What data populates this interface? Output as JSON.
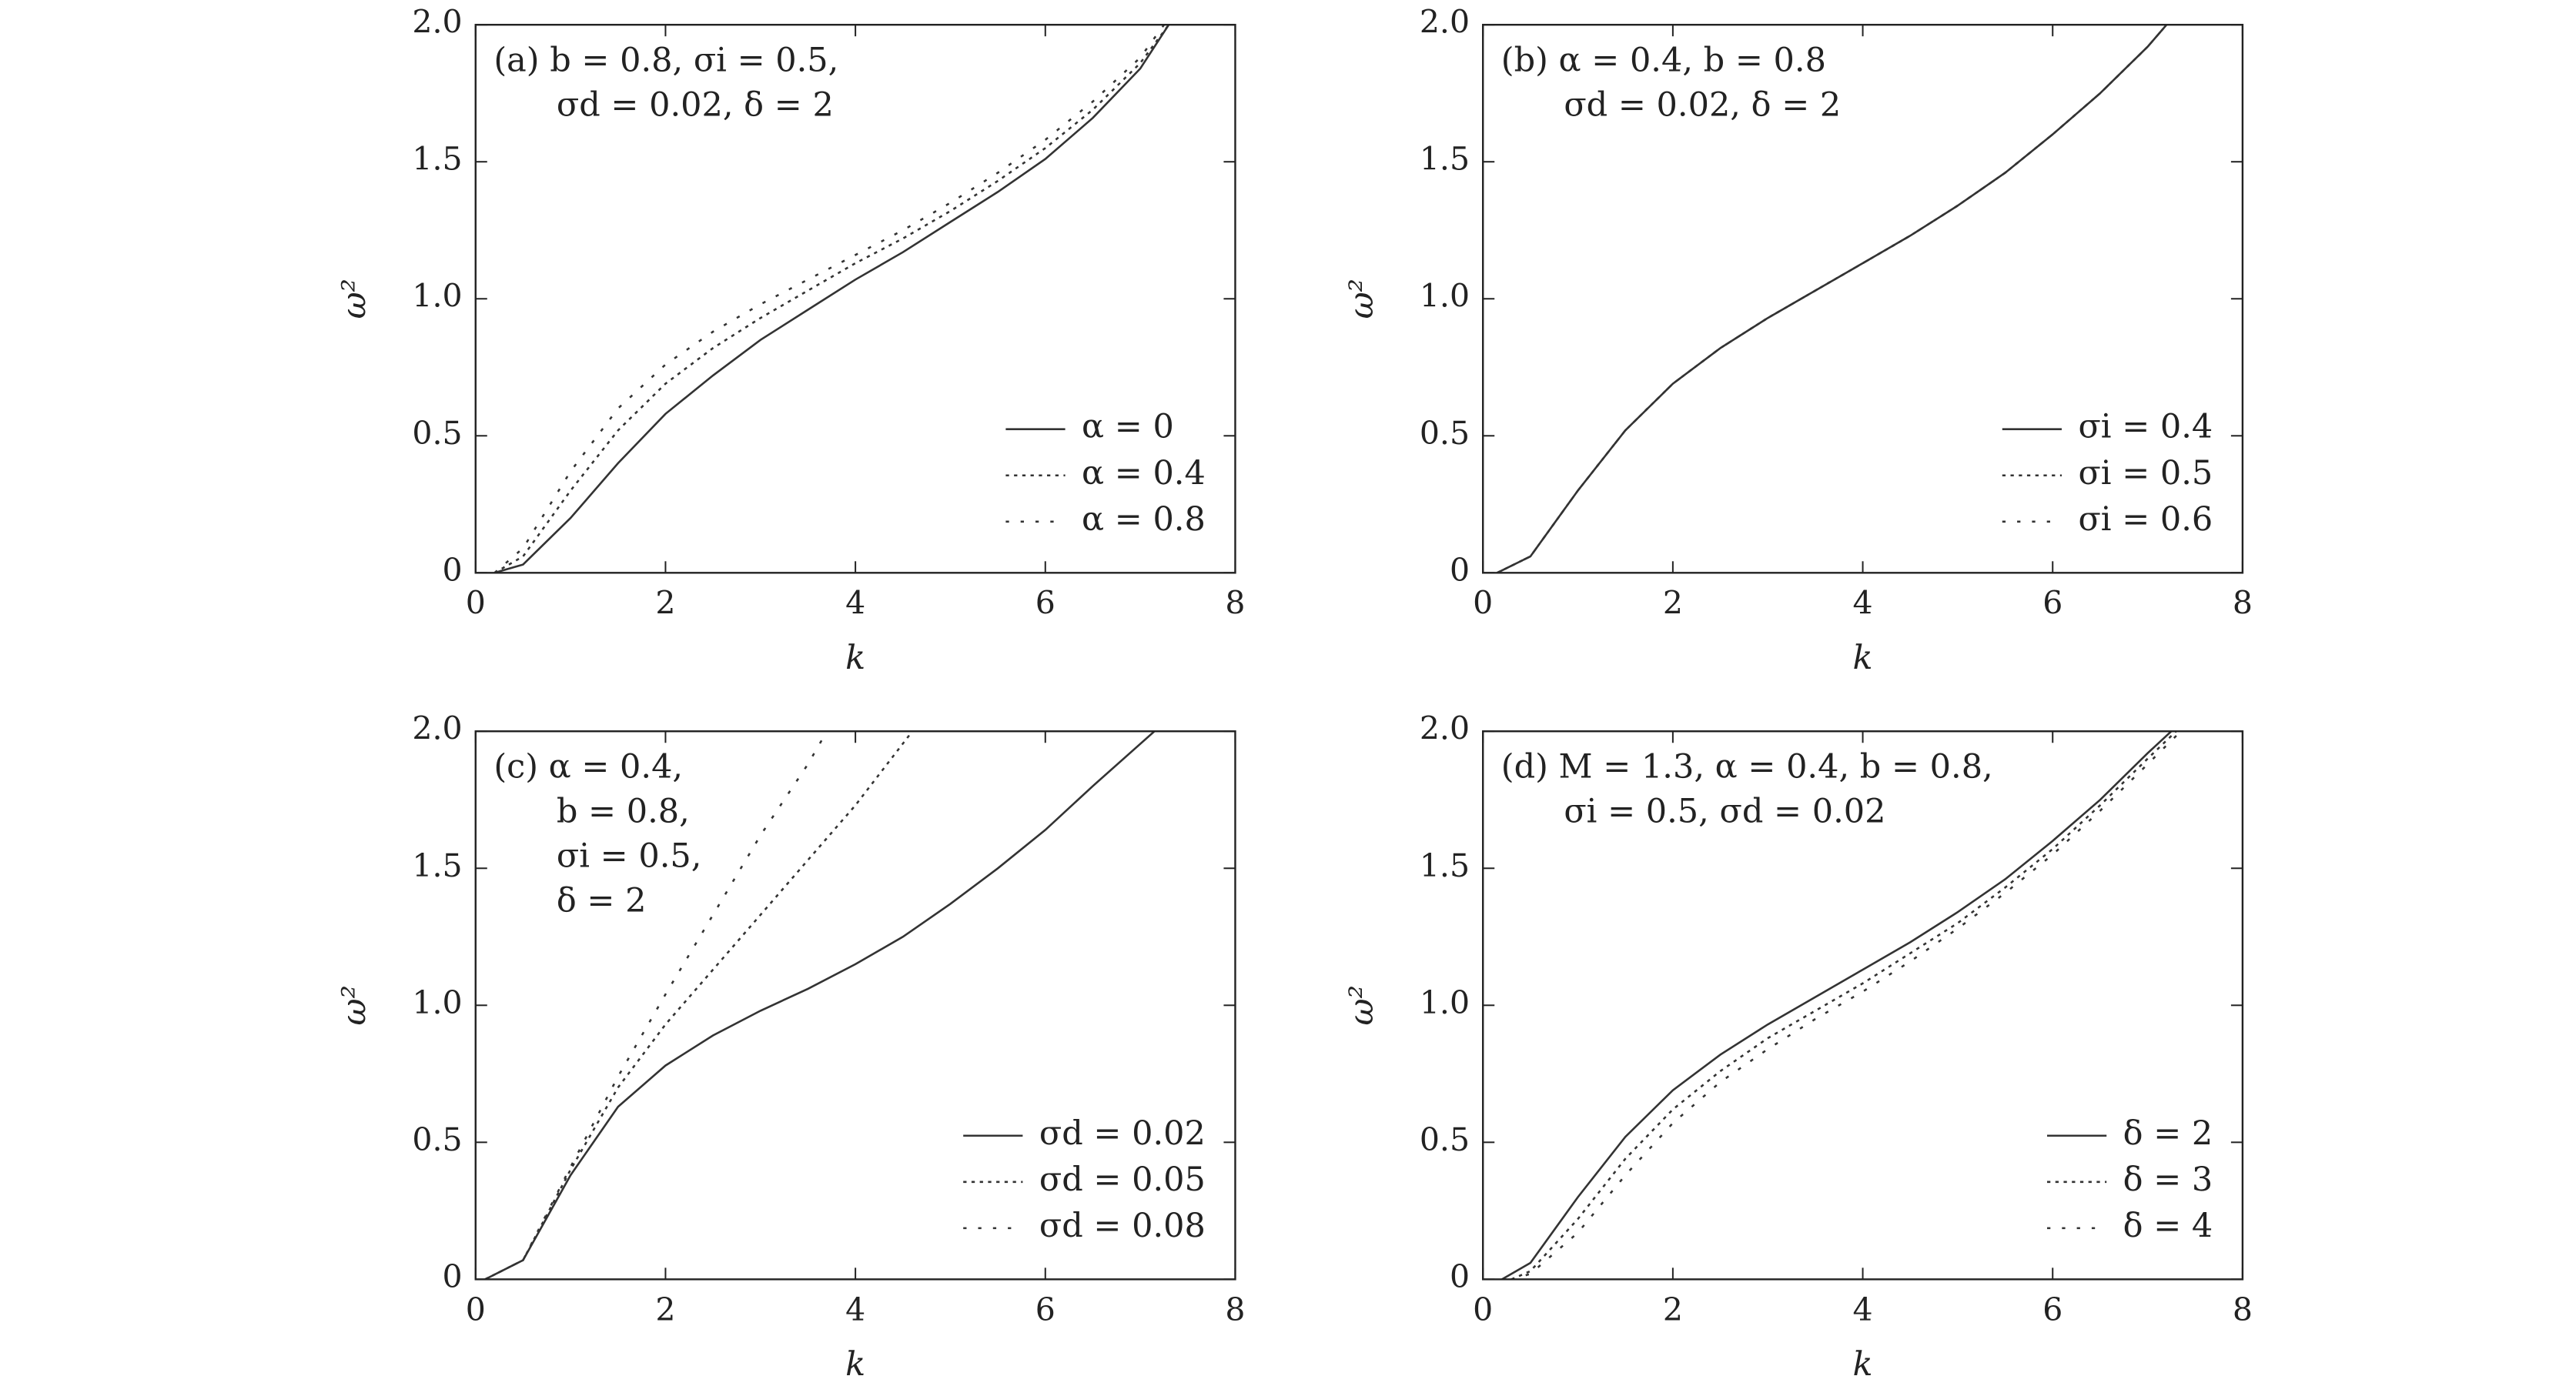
{
  "chart_data": [
    {
      "type": "line",
      "annotation": [
        "(a) b = 0.8, σi = 0.5,",
        "σd = 0.02, δ = 2"
      ],
      "x_label": "k",
      "y_label": "ω²",
      "xlim": [
        0,
        8
      ],
      "ylim": [
        0,
        2
      ],
      "xticks": [
        0,
        2,
        4,
        6,
        8
      ],
      "yticks": [
        0,
        0.5,
        {
          "value": 1,
          "label": "1.0"
        },
        1.5,
        {
          "value": 2,
          "label": "2.0"
        }
      ],
      "legend": "lower right",
      "series": [
        {
          "name": "α = 0",
          "color": "#333333",
          "dash": "solid",
          "x": [
            0.2,
            0.5,
            1,
            1.5,
            2,
            2.5,
            3,
            3.5,
            4,
            4.5,
            5,
            5.5,
            6,
            6.5,
            7,
            7.3
          ],
          "values": [
            0,
            0.03,
            0.2,
            0.4,
            0.58,
            0.72,
            0.85,
            0.96,
            1.07,
            1.17,
            1.28,
            1.39,
            1.51,
            1.66,
            1.84,
            2.0
          ]
        },
        {
          "name": "α = 0.4",
          "color": "#333333",
          "dash": "dotted",
          "x": [
            0.2,
            0.5,
            1,
            1.5,
            2,
            2.5,
            3,
            3.5,
            4,
            4.5,
            5,
            5.5,
            6,
            6.5,
            7,
            7.3
          ],
          "values": [
            0,
            0.06,
            0.3,
            0.52,
            0.69,
            0.82,
            0.93,
            1.03,
            1.13,
            1.22,
            1.32,
            1.43,
            1.55,
            1.69,
            1.86,
            2.0
          ]
        },
        {
          "name": "α = 0.8",
          "color": "#333333",
          "dash": "sparse",
          "x": [
            0.2,
            0.5,
            1,
            1.5,
            2,
            2.5,
            3,
            3.5,
            4,
            4.5,
            5,
            5.5,
            6,
            6.5,
            7,
            7.25
          ],
          "values": [
            0,
            0.09,
            0.37,
            0.6,
            0.76,
            0.88,
            0.98,
            1.07,
            1.16,
            1.25,
            1.35,
            1.46,
            1.58,
            1.72,
            1.88,
            2.0
          ]
        }
      ]
    },
    {
      "type": "line",
      "annotation": [
        "(b) α = 0.4, b = 0.8",
        "σd = 0.02, δ = 2"
      ],
      "x_label": "k",
      "y_label": "ω²",
      "xlim": [
        0,
        8
      ],
      "ylim": [
        0,
        2
      ],
      "xticks": [
        0,
        2,
        4,
        6,
        8
      ],
      "yticks": [
        0,
        0.5,
        {
          "value": 1,
          "label": "1.0"
        },
        1.5,
        {
          "value": 2,
          "label": "2.0"
        }
      ],
      "legend": "lower right",
      "series": [
        {
          "name": "σi = 0.4",
          "color": "#333333",
          "dash": "solid",
          "x": [
            0.15,
            0.5,
            1,
            1.5,
            2,
            2.5,
            3,
            3.5,
            4,
            4.5,
            5,
            5.5,
            6,
            6.5,
            7,
            7.2
          ],
          "values": [
            0,
            0.06,
            0.3,
            0.52,
            0.69,
            0.82,
            0.93,
            1.03,
            1.13,
            1.23,
            1.34,
            1.46,
            1.6,
            1.75,
            1.92,
            2.0
          ]
        },
        {
          "name": "σi = 0.5",
          "color": "#333333",
          "dash": "dotted",
          "x": [
            0.15,
            0.5,
            1,
            1.5,
            2,
            2.5,
            3,
            3.5,
            4,
            4.5,
            5,
            5.5,
            6,
            6.5,
            7,
            7.2
          ],
          "values": [
            0,
            0.06,
            0.3,
            0.52,
            0.69,
            0.82,
            0.93,
            1.03,
            1.13,
            1.23,
            1.34,
            1.46,
            1.6,
            1.75,
            1.92,
            2.0
          ]
        },
        {
          "name": "σi = 0.6",
          "color": "#333333",
          "dash": "sparse",
          "x": [
            0.15,
            0.5,
            1,
            1.5,
            2,
            2.5,
            3,
            3.5,
            4,
            4.5,
            5,
            5.5,
            6,
            6.5,
            7,
            7.2
          ],
          "values": [
            0,
            0.06,
            0.3,
            0.52,
            0.69,
            0.82,
            0.93,
            1.03,
            1.13,
            1.23,
            1.34,
            1.46,
            1.6,
            1.75,
            1.92,
            2.0
          ]
        }
      ]
    },
    {
      "type": "line",
      "annotation": [
        "(c) α = 0.4,",
        "b = 0.8,",
        "σi = 0.5,",
        "δ = 2"
      ],
      "x_label": "k",
      "y_label": "ω²",
      "xlim": [
        0,
        8
      ],
      "ylim": [
        0,
        2
      ],
      "xticks": [
        0,
        2,
        4,
        6,
        8
      ],
      "yticks": [
        0,
        0.5,
        {
          "value": 1,
          "label": "1.0"
        },
        1.5,
        {
          "value": 2,
          "label": "2.0"
        }
      ],
      "legend": "lower right",
      "series": [
        {
          "name": "σd = 0.02",
          "color": "#333333",
          "dash": "solid",
          "x": [
            0.1,
            0.5,
            1,
            1.5,
            2,
            2.5,
            3,
            3.5,
            4,
            4.5,
            5,
            5.5,
            6,
            6.5,
            7.15
          ],
          "values": [
            0,
            0.07,
            0.38,
            0.63,
            0.78,
            0.89,
            0.98,
            1.06,
            1.15,
            1.25,
            1.37,
            1.5,
            1.64,
            1.8,
            2.0
          ]
        },
        {
          "name": "σd = 0.05",
          "color": "#333333",
          "dash": "dotted",
          "x": [
            0.1,
            0.5,
            1,
            1.5,
            2,
            2.5,
            3,
            3.5,
            4,
            4.6
          ],
          "values": [
            0,
            0.07,
            0.4,
            0.7,
            0.93,
            1.13,
            1.33,
            1.53,
            1.73,
            2.0
          ]
        },
        {
          "name": "σd = 0.08",
          "color": "#333333",
          "dash": "sparse",
          "x": [
            0.1,
            0.5,
            1,
            1.5,
            2,
            2.5,
            3,
            3.5,
            3.7
          ],
          "values": [
            0,
            0.07,
            0.41,
            0.74,
            1.04,
            1.33,
            1.62,
            1.88,
            2.0
          ]
        }
      ]
    },
    {
      "type": "line",
      "annotation": [
        "(d) M = 1.3, α = 0.4, b = 0.8,",
        "σi = 0.5, σd = 0.02"
      ],
      "x_label": "k",
      "y_label": "ω²",
      "xlim": [
        0,
        8
      ],
      "ylim": [
        0,
        2
      ],
      "xticks": [
        0,
        2,
        4,
        6,
        8
      ],
      "yticks": [
        0,
        0.5,
        {
          "value": 1,
          "label": "1.0"
        },
        1.5,
        {
          "value": 2,
          "label": "2.0"
        }
      ],
      "legend": "lower right",
      "series": [
        {
          "name": "δ = 2",
          "color": "#333333",
          "dash": "solid",
          "x": [
            0.2,
            0.5,
            1,
            1.5,
            2,
            2.5,
            3,
            3.5,
            4,
            4.5,
            5,
            5.5,
            6,
            6.5,
            7,
            7.25
          ],
          "values": [
            0,
            0.06,
            0.3,
            0.52,
            0.69,
            0.82,
            0.93,
            1.03,
            1.13,
            1.23,
            1.34,
            1.46,
            1.6,
            1.75,
            1.92,
            2.0
          ]
        },
        {
          "name": "δ = 3",
          "color": "#333333",
          "dash": "dotted",
          "x": [
            0.3,
            0.5,
            1,
            1.5,
            2,
            2.5,
            3,
            3.5,
            4,
            4.5,
            5,
            5.5,
            6,
            6.5,
            7,
            7.3
          ],
          "values": [
            0,
            0.03,
            0.22,
            0.44,
            0.62,
            0.76,
            0.88,
            0.98,
            1.08,
            1.19,
            1.3,
            1.43,
            1.57,
            1.73,
            1.9,
            2.0
          ]
        },
        {
          "name": "δ = 4",
          "color": "#333333",
          "dash": "sparse",
          "x": [
            0.3,
            0.5,
            1,
            1.5,
            2,
            2.5,
            3,
            3.5,
            4,
            4.5,
            5,
            5.5,
            6,
            6.5,
            7,
            7.35
          ],
          "values": [
            0,
            0.02,
            0.17,
            0.38,
            0.57,
            0.72,
            0.84,
            0.95,
            1.05,
            1.16,
            1.28,
            1.41,
            1.55,
            1.71,
            1.88,
            2.0
          ]
        }
      ]
    }
  ]
}
